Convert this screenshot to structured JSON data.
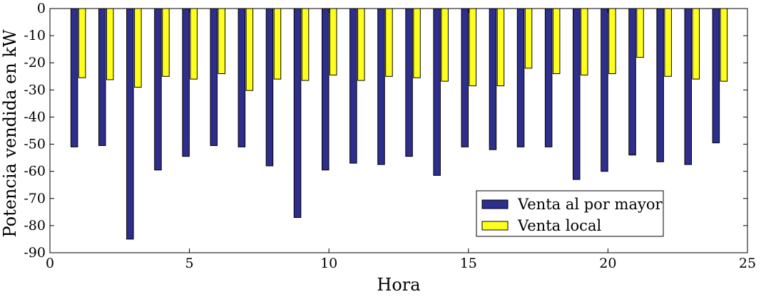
{
  "chart_data": {
    "type": "bar",
    "title": "",
    "xlabel": "Hora",
    "ylabel": "Potencia vendida en kW",
    "xlim": [
      0,
      25
    ],
    "ylim": [
      -90,
      0
    ],
    "xticks": [
      0,
      5,
      10,
      15,
      20,
      25
    ],
    "yticks": [
      0,
      -10,
      -20,
      -30,
      -40,
      -50,
      -60,
      -70,
      -80,
      -90
    ],
    "grid": false,
    "legend_position": "lower-right",
    "categories": [
      1,
      2,
      3,
      4,
      5,
      6,
      7,
      8,
      9,
      10,
      11,
      12,
      13,
      14,
      15,
      16,
      17,
      18,
      19,
      20,
      21,
      22,
      23,
      24
    ],
    "series": [
      {
        "name": "Venta al por mayor",
        "color": "#2e2e8c",
        "values": [
          -51,
          -50.5,
          -85,
          -59.5,
          -54.5,
          -50.5,
          -51,
          -58,
          -77,
          -59.5,
          -57,
          -57.5,
          -54.5,
          -61.5,
          -51,
          -52,
          -51,
          -51,
          -63,
          -60,
          -54,
          -56.5,
          -57.5,
          -49.5
        ]
      },
      {
        "name": "Venta local",
        "color": "#ffff1e",
        "values": [
          -25.5,
          -26.2,
          -29,
          -25,
          -26,
          -24,
          -30.2,
          -26,
          -26.5,
          -24.5,
          -26.5,
          -25,
          -25.5,
          -26.8,
          -28.5,
          -28.5,
          -22,
          -24,
          -24.5,
          -24,
          -18,
          -25,
          -26,
          -26.8
        ]
      }
    ]
  }
}
